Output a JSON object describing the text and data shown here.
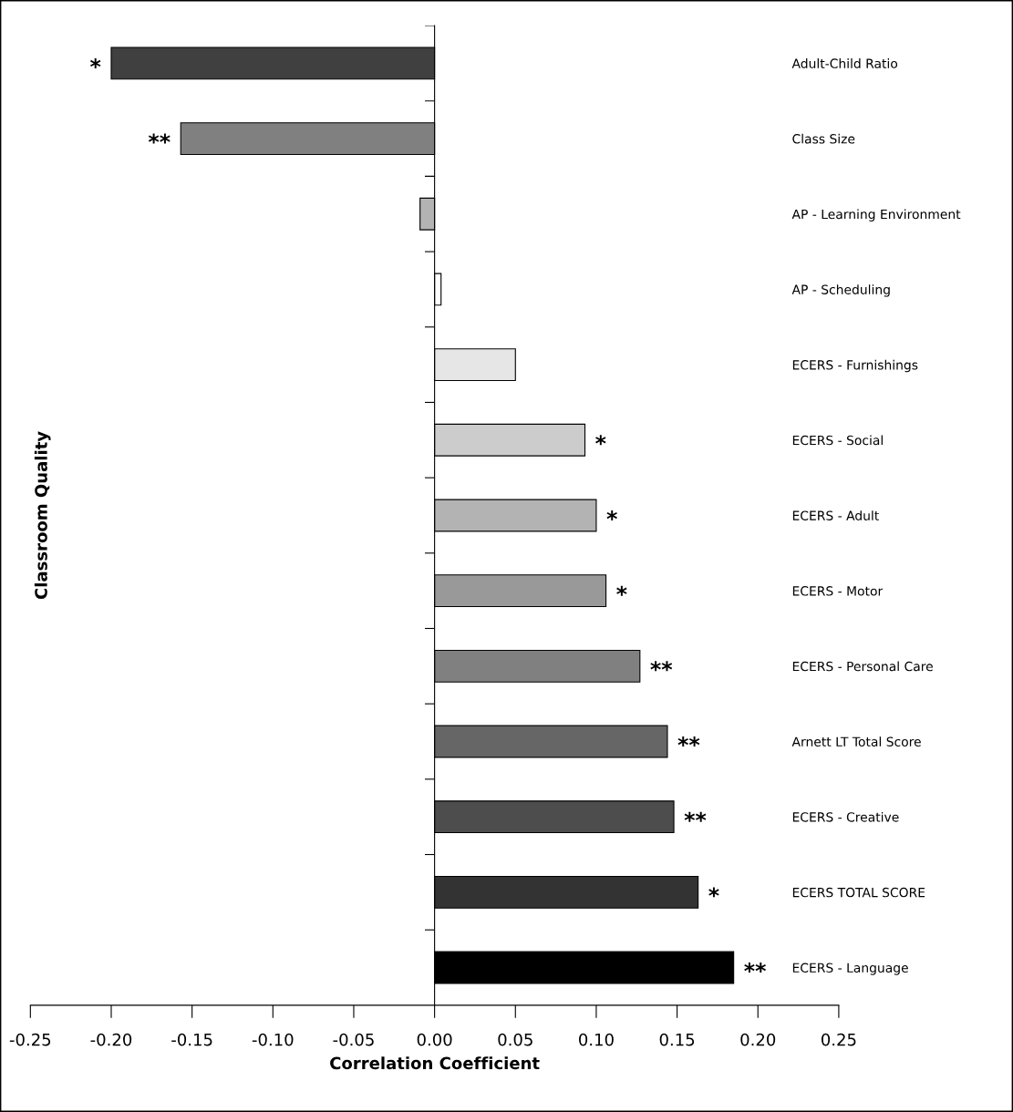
{
  "chart_data": {
    "type": "bar",
    "orientation": "horizontal",
    "xlabel": "Correlation Coefficient",
    "ylabel": "Classroom Quality",
    "categories": [
      "Adult-Child Ratio",
      "Class Size",
      "AP - Learning Environment",
      "AP - Scheduling",
      "ECERS - Furnishings",
      "ECERS - Social",
      "ECERS - Adult",
      "ECERS - Motor",
      "ECERS - Personal Care",
      "Arnett LT Total Score",
      "ECERS - Creative",
      "ECERS TOTAL SCORE",
      "ECERS - Language"
    ],
    "values": [
      -0.2,
      -0.157,
      -0.009,
      0.004,
      0.05,
      0.093,
      0.1,
      0.106,
      0.127,
      0.144,
      0.148,
      0.163,
      0.185
    ],
    "colors": [
      "#404040",
      "#808080",
      "#b3b3b3",
      "#ffffff",
      "#e6e6e6",
      "#cccccc",
      "#b3b3b3",
      "#999999",
      "#808080",
      "#666666",
      "#4d4d4d",
      "#333333",
      "#000000"
    ],
    "value_labels": [
      "*",
      "**",
      null,
      null,
      null,
      "*",
      "*",
      "*",
      "**",
      "**",
      "**",
      "*",
      "**"
    ],
    "xlim": [
      -0.25,
      0.25
    ],
    "xticks": [
      {
        "value": -0.25,
        "label": "-0.25"
      },
      {
        "value": -0.2,
        "label": "-0.20"
      },
      {
        "value": -0.15,
        "label": "-0.15"
      },
      {
        "value": -0.1,
        "label": "-0.10"
      },
      {
        "value": -0.05,
        "label": "-0.05"
      },
      {
        "value": 0,
        "label": "0.00"
      },
      {
        "value": 0.05,
        "label": "0.05"
      },
      {
        "value": 0.1,
        "label": "0.10"
      },
      {
        "value": 0.15,
        "label": "0.15"
      },
      {
        "value": 0.2,
        "label": "0.20"
      },
      {
        "value": 0.25,
        "label": "0.25"
      }
    ],
    "legend": false
  }
}
